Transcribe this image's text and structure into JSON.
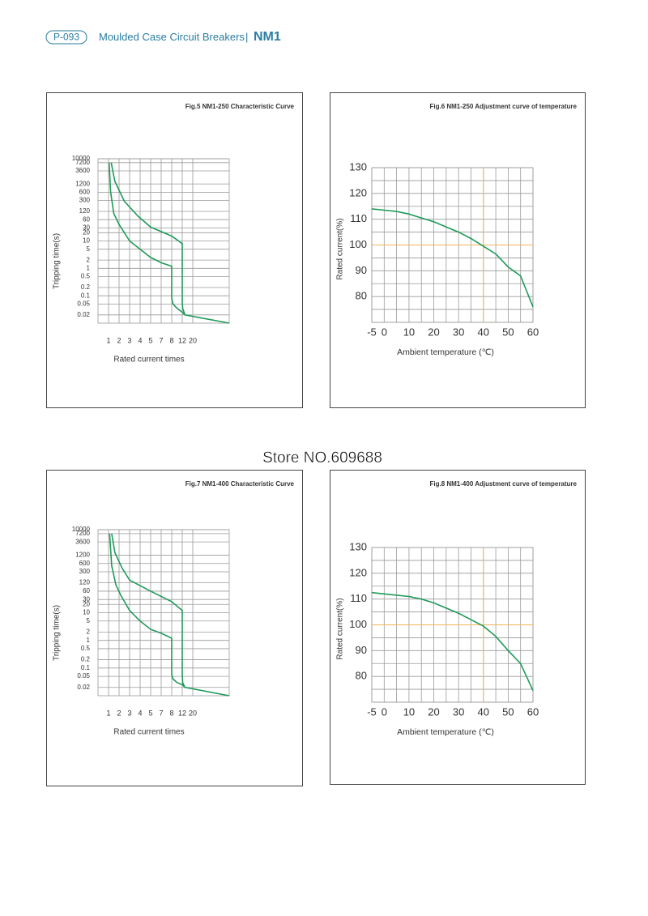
{
  "header": {
    "code": "P-093",
    "title": "Moulded Case Circuit Breakers",
    "separator": "|",
    "model": "NM1"
  },
  "watermark": "Store NO.609688",
  "chart_data": [
    {
      "type": "line",
      "title": "Fig.5 NM1-250 Characteristic Curve",
      "xlabel": "Rated current times",
      "ylabel": "Tripping time(s)",
      "ylog": true,
      "xspacing": "even",
      "grid": true,
      "xlim": [
        0,
        40
      ],
      "xticks": [
        1,
        2,
        3,
        4,
        5,
        7,
        8,
        12,
        20
      ],
      "ylim": [
        0.01,
        10000
      ],
      "yticks": [
        10000,
        7200,
        3600,
        1200,
        600,
        300,
        120,
        60,
        30,
        20,
        10,
        5,
        2,
        1,
        0.5,
        0.2,
        0.1,
        0.05,
        0.02
      ],
      "series": [
        {
          "color": "#1f9a5a",
          "x": [
            1.25,
            1.6,
            2.5,
            3.8,
            5,
            8,
            12,
            12,
            12.3,
            14,
            40
          ],
          "values": [
            7200,
            1500,
            280,
            80,
            32,
            15,
            8,
            0.06,
            0.035,
            0.02,
            0.01
          ]
        },
        {
          "color": "#1f9a5a",
          "x": [
            1.05,
            1.2,
            1.5,
            2,
            3,
            4,
            5,
            7,
            8,
            8,
            8.5,
            10,
            12,
            14
          ],
          "values": [
            7200,
            600,
            100,
            40,
            10,
            5,
            2.5,
            1.6,
            1.2,
            0.08,
            0.05,
            0.035,
            0.025,
            0.02
          ]
        }
      ]
    },
    {
      "type": "line",
      "title": "Fig.6 NM1-250 Adjustment curve of temperature",
      "xlabel": "Ambient temperature (℃)",
      "ylabel": "Rated current(%)",
      "grid": true,
      "xlim": [
        -5,
        60
      ],
      "xticks": [
        -5,
        0,
        10,
        20,
        30,
        40,
        50,
        60
      ],
      "ylim": [
        70,
        130
      ],
      "yticks": [
        130,
        120,
        110,
        100,
        90,
        80
      ],
      "xgrid": [
        -5,
        0,
        5,
        10,
        15,
        20,
        25,
        30,
        35,
        40,
        45,
        50,
        55,
        60
      ],
      "ygrid": [
        70,
        75,
        80,
        85,
        90,
        95,
        100,
        105,
        110,
        115,
        120,
        125,
        130
      ],
      "highlight": {
        "x": 40,
        "y": 100,
        "color": "#f2b45c"
      },
      "series": [
        {
          "color": "#1f9a5a",
          "x": [
            -5,
            0,
            5,
            10,
            15,
            20,
            25,
            30,
            35,
            40,
            45,
            50,
            55,
            60
          ],
          "values": [
            114,
            113.5,
            113,
            112,
            110.5,
            109,
            107,
            105,
            102.5,
            99.5,
            96.5,
            91.5,
            88,
            76
          ]
        }
      ]
    },
    {
      "type": "line",
      "title": "Fig.7 NM1-400 Characteristic Curve",
      "xlabel": "Rated current times",
      "ylabel": "Tripping time(s)",
      "ylog": true,
      "xspacing": "even",
      "grid": true,
      "xlim": [
        0,
        40
      ],
      "xticks": [
        1,
        2,
        3,
        4,
        5,
        7,
        8,
        12,
        20
      ],
      "ylim": [
        0.01,
        10000
      ],
      "yticks": [
        10000,
        7200,
        3600,
        1200,
        600,
        300,
        120,
        60,
        30,
        20,
        10,
        5,
        2,
        1,
        0.5,
        0.2,
        0.1,
        0.05,
        0.02
      ],
      "series": [
        {
          "color": "#1f9a5a",
          "x": [
            1.3,
            1.6,
            2.3,
            3,
            5,
            8,
            12,
            12,
            12.3,
            14,
            40
          ],
          "values": [
            7200,
            1500,
            400,
            150,
            60,
            25,
            12,
            0.06,
            0.03,
            0.02,
            0.01
          ]
        },
        {
          "color": "#1f9a5a",
          "x": [
            1.1,
            1.3,
            1.7,
            2.2,
            3,
            4,
            5,
            7,
            8,
            8,
            8.5,
            10,
            12,
            14
          ],
          "values": [
            7200,
            500,
            100,
            40,
            12,
            5,
            2.5,
            1.8,
            1.2,
            0.06,
            0.04,
            0.03,
            0.025,
            0.02
          ]
        }
      ]
    },
    {
      "type": "line",
      "title": "Fig.8 NM1-400 Adjustment curve of temperature",
      "xlabel": "Ambient temperature (℃)",
      "ylabel": "Rated current(%)",
      "grid": true,
      "xlim": [
        -5,
        60
      ],
      "xticks": [
        -5,
        0,
        10,
        20,
        30,
        40,
        50,
        60
      ],
      "ylim": [
        70,
        130
      ],
      "yticks": [
        130,
        120,
        110,
        100,
        90,
        80
      ],
      "xgrid": [
        -5,
        0,
        5,
        10,
        15,
        20,
        25,
        30,
        35,
        40,
        45,
        50,
        55,
        60
      ],
      "ygrid": [
        70,
        75,
        80,
        85,
        90,
        95,
        100,
        105,
        110,
        115,
        120,
        125,
        130
      ],
      "highlight": {
        "x": 40,
        "y": 100,
        "color": "#f2b45c"
      },
      "series": [
        {
          "color": "#1f9a5a",
          "x": [
            -5,
            0,
            10,
            15,
            20,
            30,
            40,
            45,
            50,
            55,
            60
          ],
          "values": [
            112.5,
            112,
            111,
            110,
            108.5,
            104.5,
            99.5,
            95.5,
            90,
            85,
            74.5
          ]
        }
      ]
    }
  ]
}
